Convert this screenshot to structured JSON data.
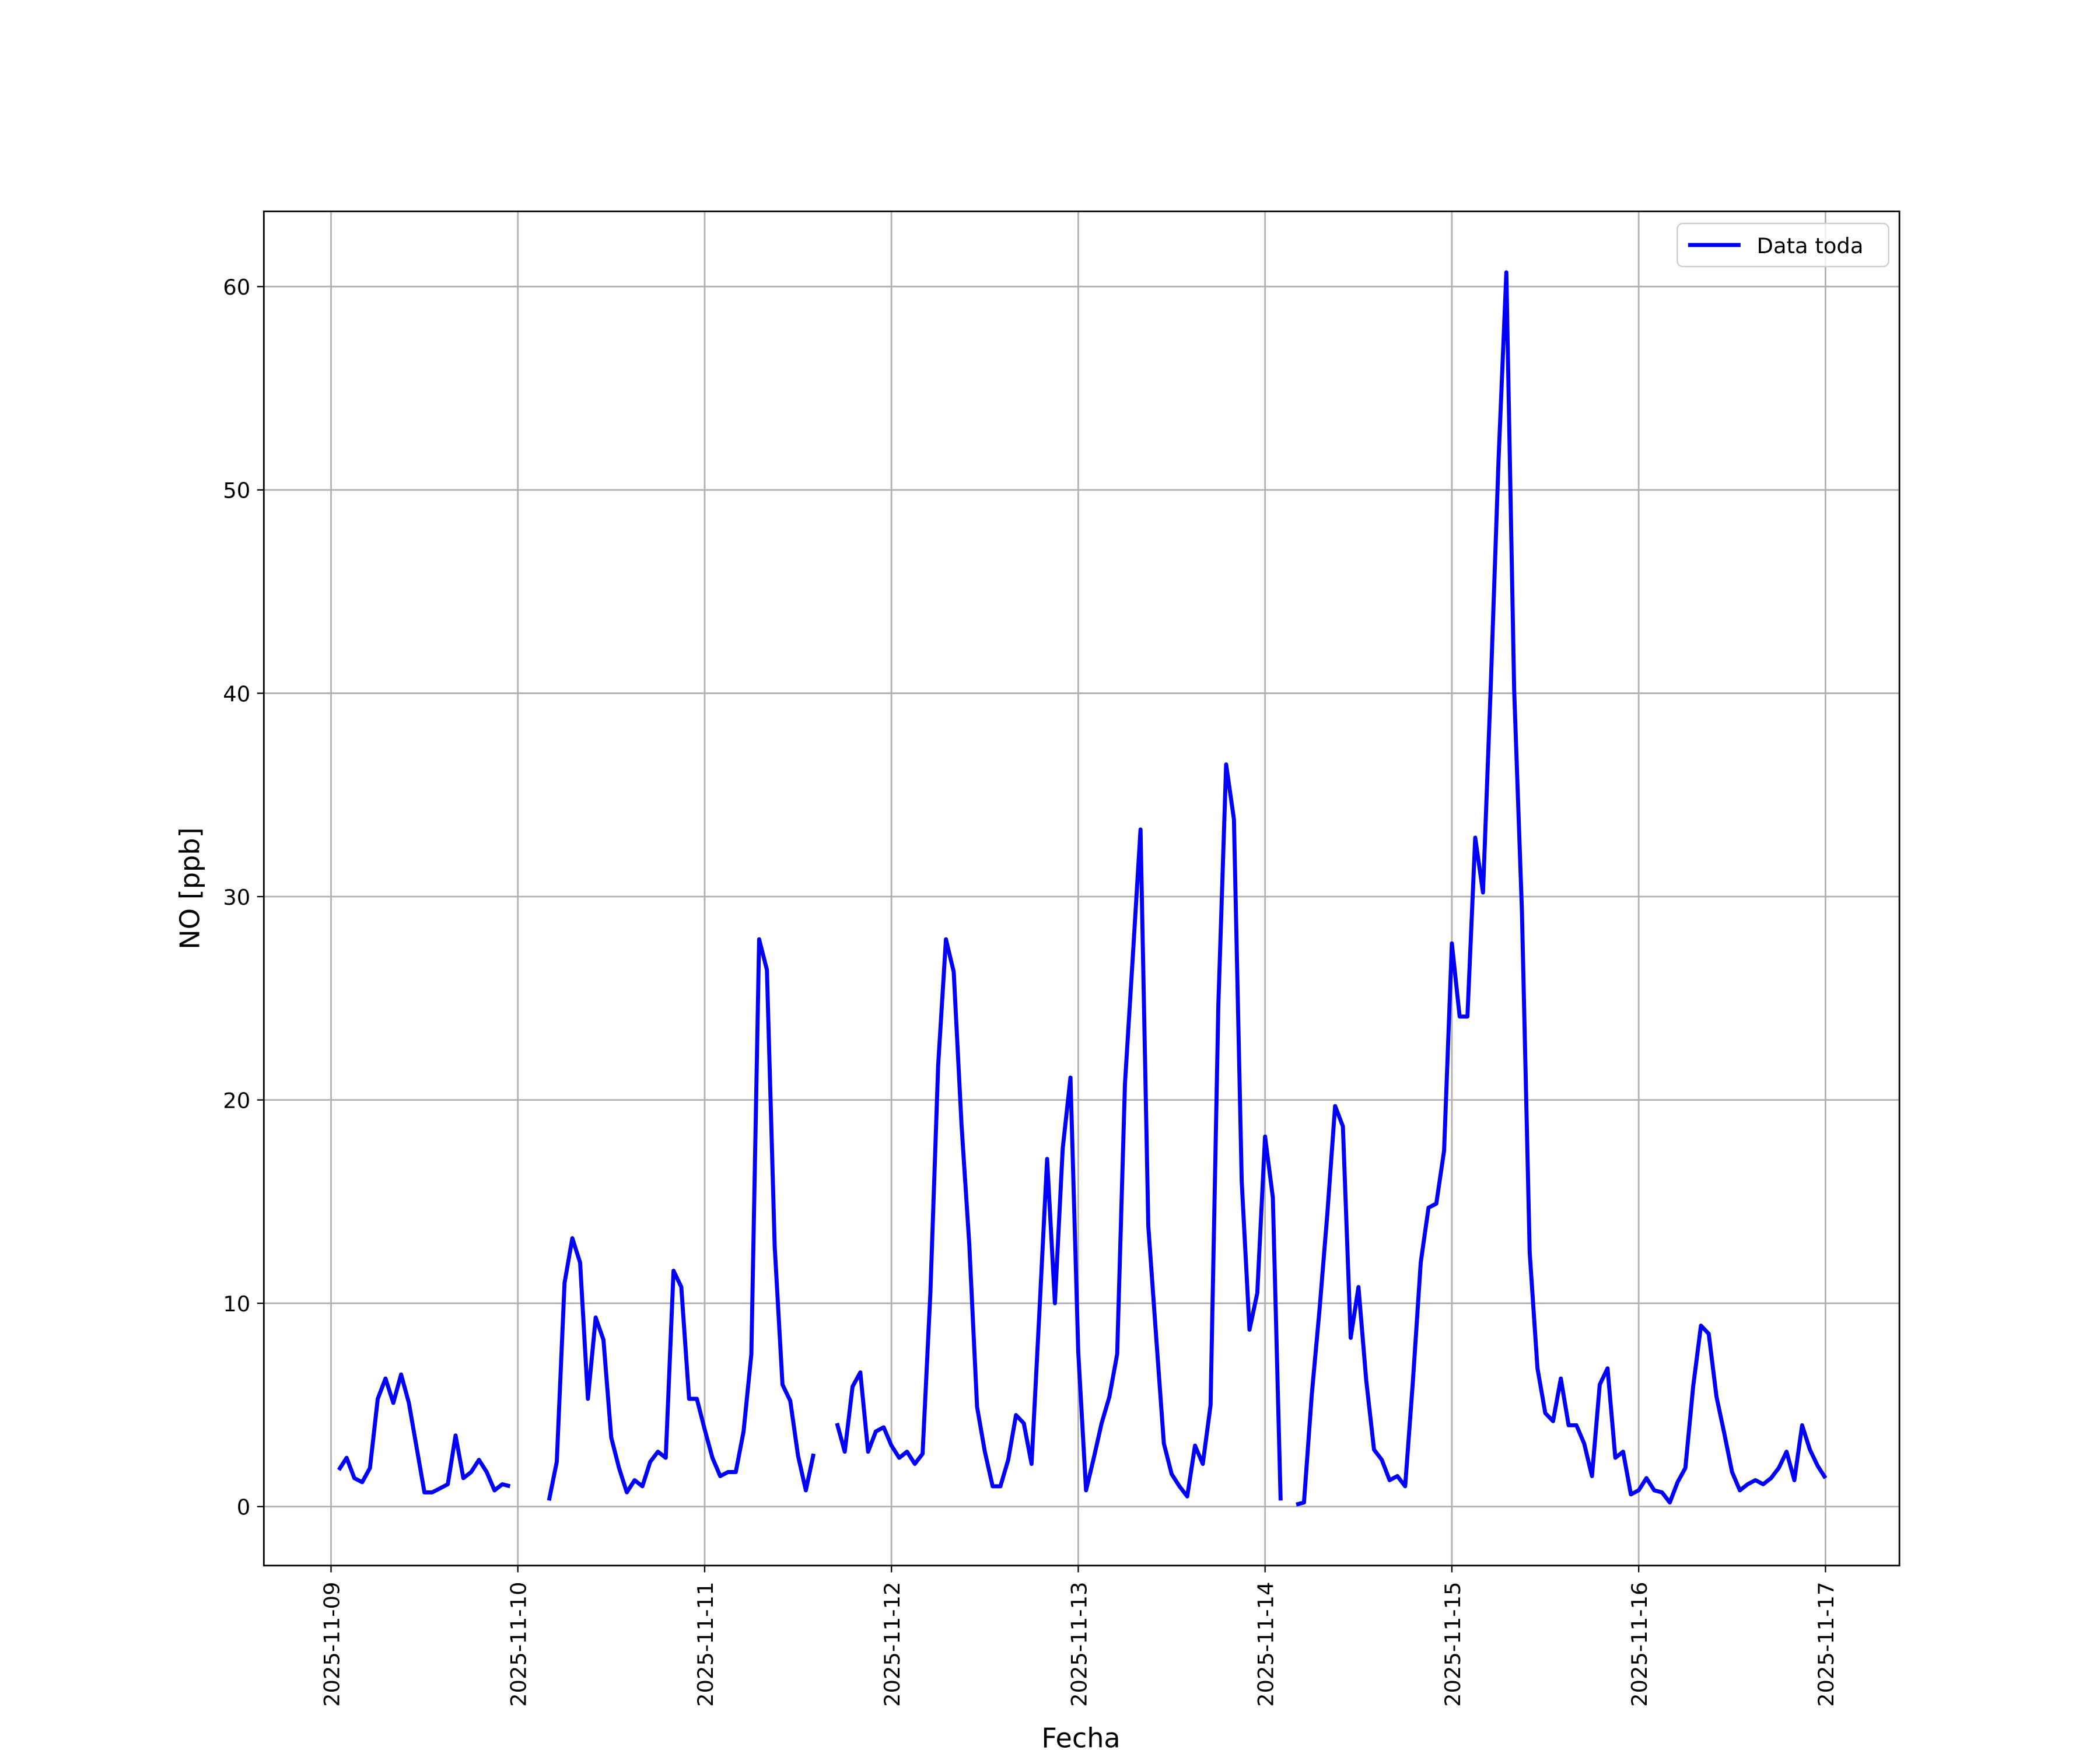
{
  "chart_data": {
    "type": "line",
    "x_label": "Fecha",
    "y_label": "NO [ppb]",
    "x": [
      "2025-11-09T01:00",
      "2025-11-09T02:00",
      "2025-11-09T03:00",
      "2025-11-09T04:00",
      "2025-11-09T05:00",
      "2025-11-09T06:00",
      "2025-11-09T07:00",
      "2025-11-09T08:00",
      "2025-11-09T09:00",
      "2025-11-09T10:00",
      "2025-11-09T11:00",
      "2025-11-09T12:00",
      "2025-11-09T13:00",
      "2025-11-09T14:00",
      "2025-11-09T15:00",
      "2025-11-09T16:00",
      "2025-11-09T17:00",
      "2025-11-09T18:00",
      "2025-11-09T19:00",
      "2025-11-09T20:00",
      "2025-11-09T21:00",
      "2025-11-09T22:00",
      "2025-11-09T23:00",
      "2025-11-10T00:00",
      "2025-11-10T01:00",
      "2025-11-10T02:00",
      "2025-11-10T03:00",
      "2025-11-10T04:00",
      "2025-11-10T05:00",
      "2025-11-10T06:00",
      "2025-11-10T07:00",
      "2025-11-10T08:00",
      "2025-11-10T09:00",
      "2025-11-10T10:00",
      "2025-11-10T11:00",
      "2025-11-10T12:00",
      "2025-11-10T13:00",
      "2025-11-10T14:00",
      "2025-11-10T15:00",
      "2025-11-10T16:00",
      "2025-11-10T17:00",
      "2025-11-10T18:00",
      "2025-11-10T19:00",
      "2025-11-10T20:00",
      "2025-11-10T21:00",
      "2025-11-10T22:00",
      "2025-11-10T23:00",
      "2025-11-11T00:00",
      "2025-11-11T01:00",
      "2025-11-11T02:00",
      "2025-11-11T03:00",
      "2025-11-11T04:00",
      "2025-11-11T05:00",
      "2025-11-11T06:00",
      "2025-11-11T07:00",
      "2025-11-11T08:00",
      "2025-11-11T09:00",
      "2025-11-11T10:00",
      "2025-11-11T11:00",
      "2025-11-11T12:00",
      "2025-11-11T13:00",
      "2025-11-11T14:00",
      "2025-11-11T15:00",
      "2025-11-11T16:00",
      "2025-11-11T17:00",
      "2025-11-11T18:00",
      "2025-11-11T19:00",
      "2025-11-11T20:00",
      "2025-11-11T21:00",
      "2025-11-11T22:00",
      "2025-11-11T23:00",
      "2025-11-12T00:00",
      "2025-11-12T01:00",
      "2025-11-12T02:00",
      "2025-11-12T03:00",
      "2025-11-12T04:00",
      "2025-11-12T05:00",
      "2025-11-12T06:00",
      "2025-11-12T07:00",
      "2025-11-12T08:00",
      "2025-11-12T09:00",
      "2025-11-12T10:00",
      "2025-11-12T11:00",
      "2025-11-12T12:00",
      "2025-11-12T13:00",
      "2025-11-12T14:00",
      "2025-11-12T15:00",
      "2025-11-12T16:00",
      "2025-11-12T17:00",
      "2025-11-12T18:00",
      "2025-11-12T19:00",
      "2025-11-12T20:00",
      "2025-11-12T21:00",
      "2025-11-12T22:00",
      "2025-11-12T23:00",
      "2025-11-13T00:00",
      "2025-11-13T01:00",
      "2025-11-13T02:00",
      "2025-11-13T03:00",
      "2025-11-13T04:00",
      "2025-11-13T05:00",
      "2025-11-13T06:00",
      "2025-11-13T07:00",
      "2025-11-13T08:00",
      "2025-11-13T09:00",
      "2025-11-13T10:00",
      "2025-11-13T11:00",
      "2025-11-13T12:00",
      "2025-11-13T13:00",
      "2025-11-13T14:00",
      "2025-11-13T15:00",
      "2025-11-13T16:00",
      "2025-11-13T17:00",
      "2025-11-13T18:00",
      "2025-11-13T19:00",
      "2025-11-13T20:00",
      "2025-11-13T21:00",
      "2025-11-13T22:00",
      "2025-11-13T23:00",
      "2025-11-14T00:00",
      "2025-11-14T01:00",
      "2025-11-14T02:00",
      "2025-11-14T03:00",
      "2025-11-14T04:00",
      "2025-11-14T05:00",
      "2025-11-14T06:00",
      "2025-11-14T07:00",
      "2025-11-14T08:00",
      "2025-11-14T09:00",
      "2025-11-14T10:00",
      "2025-11-14T11:00",
      "2025-11-14T12:00",
      "2025-11-14T13:00",
      "2025-11-14T14:00",
      "2025-11-14T15:00",
      "2025-11-14T16:00",
      "2025-11-14T17:00",
      "2025-11-14T18:00",
      "2025-11-14T19:00",
      "2025-11-14T20:00",
      "2025-11-14T21:00",
      "2025-11-14T22:00",
      "2025-11-14T23:00",
      "2025-11-15T00:00",
      "2025-11-15T01:00",
      "2025-11-15T02:00",
      "2025-11-15T03:00",
      "2025-11-15T04:00",
      "2025-11-15T05:00",
      "2025-11-15T06:00",
      "2025-11-15T07:00",
      "2025-11-15T08:00",
      "2025-11-15T09:00",
      "2025-11-15T10:00",
      "2025-11-15T11:00",
      "2025-11-15T12:00",
      "2025-11-15T13:00",
      "2025-11-15T14:00",
      "2025-11-15T15:00",
      "2025-11-15T16:00",
      "2025-11-15T17:00",
      "2025-11-15T18:00",
      "2025-11-15T19:00",
      "2025-11-15T20:00",
      "2025-11-15T21:00",
      "2025-11-15T22:00",
      "2025-11-15T23:00",
      "2025-11-16T00:00",
      "2025-11-16T01:00",
      "2025-11-16T02:00",
      "2025-11-16T03:00",
      "2025-11-16T04:00",
      "2025-11-16T05:00",
      "2025-11-16T06:00",
      "2025-11-16T07:00",
      "2025-11-16T08:00",
      "2025-11-16T09:00",
      "2025-11-16T10:00",
      "2025-11-16T11:00",
      "2025-11-16T12:00",
      "2025-11-16T13:00",
      "2025-11-16T14:00",
      "2025-11-16T15:00",
      "2025-11-16T16:00",
      "2025-11-16T17:00",
      "2025-11-16T18:00",
      "2025-11-16T19:00",
      "2025-11-16T20:00",
      "2025-11-16T21:00",
      "2025-11-16T22:00",
      "2025-11-16T23:00",
      "2025-11-17T00:00"
    ],
    "series": [
      {
        "name": "Data toda",
        "color": "#0000ff",
        "values": [
          1.8,
          2.4,
          1.4,
          1.2,
          1.9,
          5.3,
          6.3,
          5.1,
          6.5,
          5.1,
          2.9,
          0.7,
          0.7,
          0.9,
          1.1,
          3.5,
          1.4,
          1.7,
          2.3,
          1.7,
          0.8,
          1.1,
          1.0,
          null,
          null,
          null,
          null,
          0.3,
          2.2,
          11,
          13.2,
          12,
          5.3,
          9.3,
          8.2,
          3.4,
          1.9,
          0.7,
          1.3,
          1.0,
          2.2,
          2.7,
          2.4,
          11.6,
          10.8,
          5.3,
          5.3,
          3.8,
          2.4,
          1.5,
          1.7,
          1.7,
          3.7,
          7.5,
          27.9,
          26.4,
          12.8,
          6.0,
          5.2,
          2.5,
          0.8,
          2.6,
          null,
          null,
          4.1,
          2.7,
          5.9,
          6.6,
          2.7,
          3.7,
          3.9,
          3.0,
          2.4,
          2.7,
          2.1,
          2.6,
          10.5,
          21.7,
          27.9,
          26.3,
          18.8,
          12.9,
          4.9,
          2.7,
          1.0,
          1.0,
          2.3,
          4.5,
          4.1,
          2.1,
          9.5,
          17.1,
          10.0,
          17.6,
          21.1,
          7.6,
          0.8,
          2.4,
          4.1,
          5.4,
          7.5,
          20.8,
          27.0,
          33.3,
          13.8,
          8.4,
          3.1,
          1.6,
          1.0,
          0.5,
          3.0,
          2.1,
          5.0,
          24.7,
          36.5,
          33.8,
          16.0,
          8.7,
          10.5,
          18.2,
          15.2,
          0.3,
          null,
          0.1,
          0.2,
          5.5,
          9.7,
          14.4,
          19.7,
          18.7,
          8.3,
          10.8,
          6.2,
          2.8,
          2.3,
          1.3,
          1.5,
          1.0,
          6.2,
          12.0,
          14.7,
          14.9,
          17.5,
          27.7,
          24.1,
          24.1,
          32.9,
          30.2,
          40.4,
          51.5,
          60.7,
          40.2,
          29.3,
          12.5,
          6.8,
          4.6,
          4.2,
          6.3,
          4.0,
          4.0,
          3.1,
          1.5,
          6.0,
          6.8,
          2.4,
          2.7,
          0.6,
          0.8,
          1.4,
          0.8,
          0.7,
          0.2,
          1.2,
          1.9,
          5.9,
          8.9,
          8.5,
          5.4,
          3.6,
          1.7,
          0.8,
          1.1,
          1.3,
          1.1,
          1.4,
          1.9,
          2.7,
          1.3,
          4.0,
          2.8,
          2.0,
          1.4
        ]
      }
    ],
    "xlim": [
      "2025-11-08T15:22",
      "2025-11-17T09:30"
    ],
    "xticks": [
      "2025-11-09",
      "2025-11-10",
      "2025-11-11",
      "2025-11-12",
      "2025-11-13",
      "2025-11-14",
      "2025-11-15",
      "2025-11-16",
      "2025-11-17"
    ],
    "ylim": [
      -2.9,
      63.7
    ],
    "yticks": [
      0,
      10,
      20,
      30,
      40,
      50,
      60
    ],
    "grid": true,
    "legend": "upper right"
  }
}
